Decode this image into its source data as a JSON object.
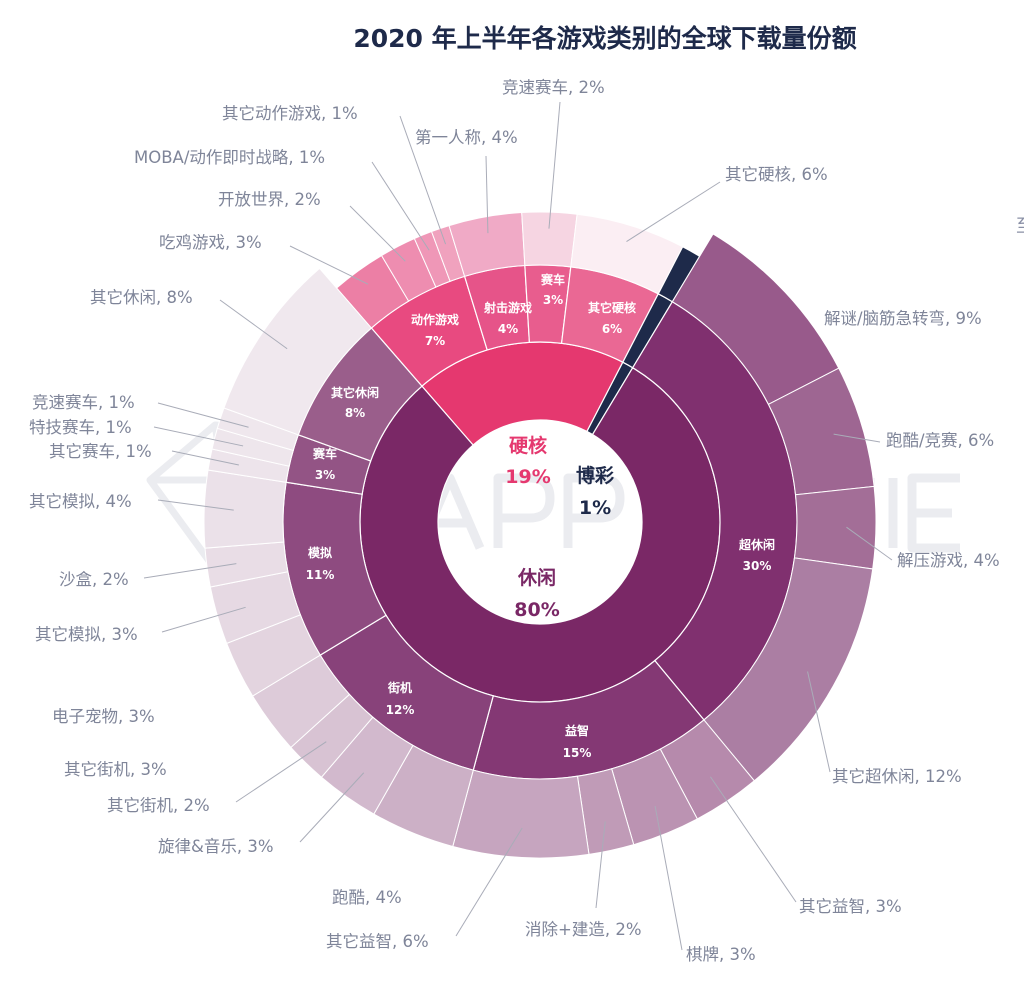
{
  "chart_data": {
    "type": "sunburst",
    "title": "2020 年上半年各游戏类别的全球下载量份额",
    "unit": "%",
    "watermark": "APP ANNIE",
    "edge_text": "至",
    "categories": [
      {
        "name": "硬核",
        "value": 19,
        "color": "#e5386f",
        "children": [
          {
            "name": "动作游戏",
            "value": 7,
            "color": "#e84a80",
            "children": [
              {
                "label": "吃鸡游戏, 3%",
                "value": 3,
                "color": "#ec7fa5"
              },
              {
                "label": "开放世界, 2%",
                "value": 2,
                "color": "#ee8db0"
              },
              {
                "label": "MOBA/动作即时战略, 1%",
                "value": 1,
                "color": "#ef97b7"
              },
              {
                "label": "其它动作游戏, 1%",
                "value": 1,
                "color": "#f0a2be"
              }
            ]
          },
          {
            "name": "射击游戏",
            "value": 4,
            "color": "#e65489",
            "children": [
              {
                "label": "第一人称, 4%",
                "value": 4,
                "color": "#f0aac6"
              }
            ]
          },
          {
            "name": "赛车",
            "value": 3,
            "color": "#e85d8e",
            "children": [
              {
                "label": "竞速赛车, 2%",
                "value": 2,
                "color": "#f6d5e2"
              }
            ]
          },
          {
            "name": "其它硬核",
            "value": 6,
            "color": "#ea6894",
            "children": [
              {
                "label": "其它硬核, 6%",
                "value": 6,
                "color": "#fbeef3"
              }
            ]
          }
        ]
      },
      {
        "name": "博彩",
        "value": 1,
        "color": "#1e2a4a",
        "children": []
      },
      {
        "name": "休闲",
        "value": 80,
        "color": "#7a2866",
        "children": [
          {
            "name": "超休闲",
            "value": 30,
            "color": "#80306f",
            "children": [
              {
                "label": "解谜/脑筋急转弯, 9%",
                "value": 9,
                "color": "#985a8b"
              },
              {
                "label": "跑酷/竞赛, 6%",
                "value": 6,
                "color": "#9e6692"
              },
              {
                "label": "解压游戏, 4%",
                "value": 4,
                "color": "#a36e97"
              },
              {
                "label": "其它超休闲, 12%",
                "value": 12,
                "color": "#ab7ea3"
              }
            ]
          },
          {
            "name": "益智",
            "value": 15,
            "color": "#843874",
            "children": [
              {
                "label": "其它益智, 3%",
                "value": 3,
                "color": "#b68aac"
              },
              {
                "label": "棋牌, 3%",
                "value": 3,
                "color": "#bb93b2"
              },
              {
                "label": "消除+建造, 2%",
                "value": 2,
                "color": "#c09bb7"
              },
              {
                "label": "其它益智, 6%",
                "value": 6,
                "color": "#c6a5bf"
              }
            ]
          },
          {
            "name": "街机",
            "value": 12,
            "color": "#88427a",
            "children": [
              {
                "label": "跑酷, 4%",
                "value": 4,
                "color": "#ccb0c6"
              },
              {
                "label": "旋律&音乐, 3%",
                "value": 3,
                "color": "#d2b9cd"
              },
              {
                "label": "其它街机, 2%",
                "value": 2,
                "color": "#d8c3d3"
              },
              {
                "label": "其它街机, 3%",
                "value": 3,
                "color": "#ddcbd9"
              }
            ]
          },
          {
            "name": "模拟",
            "value": 11,
            "color": "#8e4b80",
            "children": [
              {
                "label": "电子宠物, 3%",
                "value": 3,
                "color": "#e3d4df"
              },
              {
                "label": "其它模拟, 3%",
                "value": 3,
                "color": "#e6d9e3"
              },
              {
                "label": "沙盒, 2%",
                "value": 2,
                "color": "#e9dde6"
              },
              {
                "label": "其它模拟, 4%",
                "value": 4,
                "color": "#ebe1e9"
              }
            ]
          },
          {
            "name": "赛车",
            "value": 3,
            "color": "#935485",
            "children": [
              {
                "label": "其它赛车, 1%",
                "value": 1,
                "color": "#ede4eb"
              },
              {
                "label": "特技赛车, 1%",
                "value": 1,
                "color": "#eee6ec"
              },
              {
                "label": "竞速赛车, 1%",
                "value": 1,
                "color": "#efe7ed"
              }
            ]
          },
          {
            "name": "其它休闲",
            "value": 8,
            "color": "#9a5e8b",
            "children": [
              {
                "label": "其它休闲, 8%",
                "value": 8,
                "color": "#f0e8ee"
              }
            ]
          }
        ]
      }
    ]
  }
}
